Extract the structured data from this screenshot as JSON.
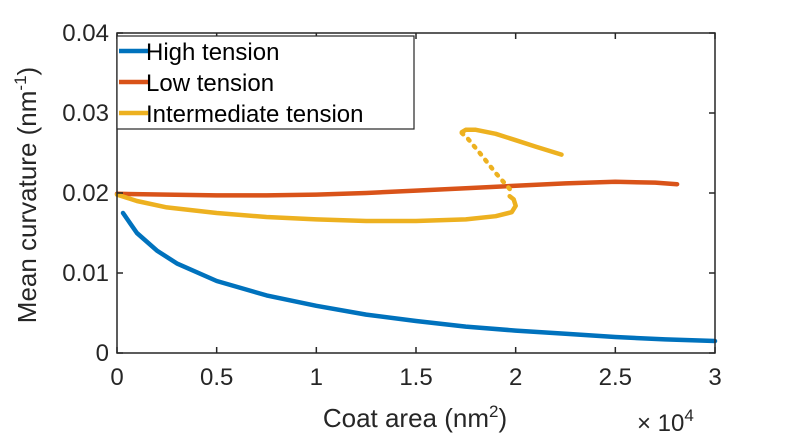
{
  "chart_data": {
    "type": "line",
    "xlabel": "Coat area (nm",
    "xlabel_sup": "2",
    "xlabel_close": ")",
    "ylabel": "Mean curvature (nm",
    "ylabel_sup": "-1",
    "ylabel_close": ")",
    "xlim": [
      0,
      30000
    ],
    "ylim": [
      0,
      0.04
    ],
    "x_ticks": [
      0,
      5000,
      10000,
      15000,
      20000,
      25000,
      30000
    ],
    "x_tick_labels": [
      "0",
      "0.5",
      "1",
      "1.5",
      "2",
      "2.5",
      "3"
    ],
    "x_multiplier_base": "× 10",
    "x_multiplier_exp": "4",
    "y_ticks": [
      0,
      0.01,
      0.02,
      0.03,
      0.04
    ],
    "y_tick_labels": [
      "0",
      "0.01",
      "0.02",
      "0.03",
      "0.04"
    ],
    "legend_position": "top-left",
    "series": [
      {
        "name": "High tension",
        "color": "#0072BD",
        "segments": [
          {
            "style": "solid",
            "x": [
              300,
              1000,
              2000,
              3000,
              5000,
              7500,
              10000,
              12500,
              15000,
              17500,
              20000,
              22500,
              25000,
              27500,
              30000
            ],
            "y": [
              0.0175,
              0.015,
              0.0128,
              0.0112,
              0.009,
              0.0072,
              0.0059,
              0.0048,
              0.004,
              0.0033,
              0.0028,
              0.0024,
              0.002,
              0.0017,
              0.0015
            ]
          }
        ]
      },
      {
        "name": "Low tension",
        "color": "#D95319",
        "segments": [
          {
            "style": "solid",
            "x": [
              0,
              2500,
              5000,
              7500,
              10000,
              12500,
              15000,
              17500,
              20000,
              22500,
              25000,
              27000,
              28100
            ],
            "y": [
              0.0199,
              0.0198,
              0.0197,
              0.0197,
              0.0198,
              0.02,
              0.0203,
              0.0206,
              0.0209,
              0.0212,
              0.0214,
              0.0213,
              0.0211
            ]
          }
        ]
      },
      {
        "name": "Intermediate tension",
        "color": "#EDB120",
        "segments": [
          {
            "style": "solid",
            "x": [
              0,
              1000,
              2500,
              5000,
              7500,
              10000,
              12500,
              15000,
              17500,
              19000,
              19800,
              20000,
              19900,
              19700
            ],
            "y": [
              0.0198,
              0.019,
              0.0182,
              0.0175,
              0.017,
              0.0167,
              0.0165,
              0.0165,
              0.0167,
              0.0171,
              0.0176,
              0.0184,
              0.0192,
              0.0196
            ]
          },
          {
            "style": "dotted",
            "x": [
              19700,
              19000,
              18200,
              17600,
              17300
            ],
            "y": [
              0.0205,
              0.0225,
              0.025,
              0.0268,
              0.0275
            ]
          },
          {
            "style": "solid",
            "x": [
              17300,
              17500,
              18000,
              19000,
              20000,
              21000,
              22300
            ],
            "y": [
              0.0276,
              0.0279,
              0.0279,
              0.0274,
              0.0266,
              0.0258,
              0.0248
            ]
          }
        ]
      }
    ]
  }
}
